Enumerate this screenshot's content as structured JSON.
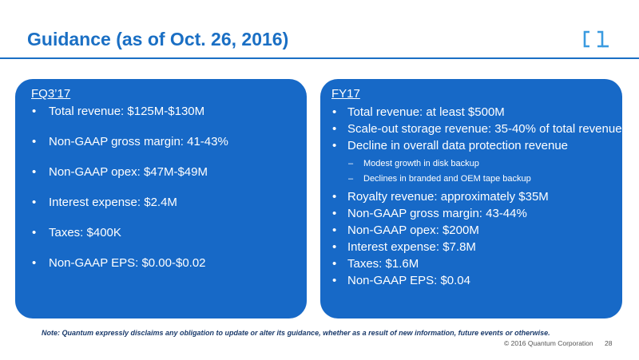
{
  "title": "Guidance (as of Oct. 26, 2016)",
  "colors": {
    "accent": "#1a6fc4",
    "panel": "#1769c7",
    "logo": "#3a9be0"
  },
  "logo_icon": "bracket-logo-icon",
  "left_panel": {
    "heading": "FQ3’17",
    "items": [
      "Total revenue: $125M-$130M",
      "Non-GAAP gross margin: 41-43%",
      "Non-GAAP opex: $47M-$49M",
      "Interest expense: $2.4M",
      "Taxes: $400K",
      "Non-GAAP EPS: $0.00-$0.02"
    ]
  },
  "right_panel": {
    "heading": "FY17",
    "items": [
      "Total revenue: at least $500M",
      "Scale-out storage revenue: 35-40% of total revenue",
      "Decline in overall data protection revenue",
      "Royalty revenue: approximately $35M",
      "Non-GAAP gross margin: 43-44%",
      "Non-GAAP opex: $200M",
      "Interest expense: $7.8M",
      "Taxes: $1.6M",
      "Non-GAAP EPS: $0.04"
    ],
    "sub_items": [
      "Modest growth in disk backup",
      "Declines in branded and OEM tape backup"
    ]
  },
  "note": "Note: Quantum expressly disclaims any obligation to update or alter its guidance, whether as a result of new information, future events or otherwise.",
  "footer": {
    "copyright": "© 2016 Quantum Corporation",
    "page": "28"
  }
}
